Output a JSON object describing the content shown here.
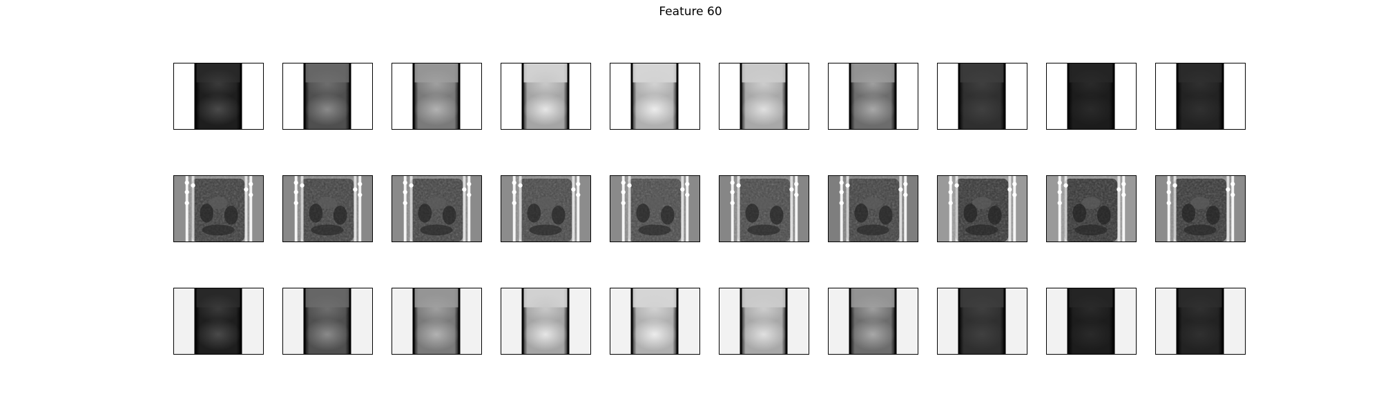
{
  "title": "Feature 60",
  "colors": {
    "background": "#ffffff",
    "frame": "#000000",
    "row_backgrounds": [
      "#ffffff",
      "#8a8a8a",
      "#f2f2f2"
    ]
  },
  "rows": [
    {
      "name": "row-1",
      "kind": "smooth",
      "tiles": [
        {
          "body": "#1e1e1e",
          "top": "#2a2a2a",
          "blob_top": "#3a3a3a",
          "blob_bottom": "#4a4a4a"
        },
        {
          "body": "#4f4f4f",
          "top": "#6a6a6a",
          "blob_top": "#6e6e6e",
          "blob_bottom": "#8a8a8a"
        },
        {
          "body": "#7a7a7a",
          "top": "#9a9a9a",
          "blob_top": "#a0a0a0",
          "blob_bottom": "#b2b2b2"
        },
        {
          "body": "#a5a5a5",
          "top": "#d8d8d8",
          "blob_top": "#c8c8c8",
          "blob_bottom": "#e6e6e6"
        },
        {
          "body": "#b0b0b0",
          "top": "#dcdcdc",
          "blob_top": "#d2d2d2",
          "blob_bottom": "#ececec"
        },
        {
          "body": "#a8a8a8",
          "top": "#cfcfcf",
          "blob_top": "#cdcdcd",
          "blob_bottom": "#e0e0e0"
        },
        {
          "body": "#6c6c6c",
          "top": "#9a9a9a",
          "blob_top": "#9f9f9f",
          "blob_bottom": "#a8a8a8"
        },
        {
          "body": "#2f2f2f",
          "top": "#3c3c3c",
          "blob_top": "#3f3f3f",
          "blob_bottom": "#404040"
        },
        {
          "body": "#1c1c1c",
          "top": "#262626",
          "blob_top": "#2a2a2a",
          "blob_bottom": "#2a2a2a"
        },
        {
          "body": "#222222",
          "top": "#2c2c2c",
          "blob_top": "#303030",
          "blob_bottom": "#303030"
        }
      ]
    },
    {
      "name": "row-2",
      "kind": "textured",
      "tiles": [
        {
          "bg": "#8e8e8e",
          "body": "#3a3a3a"
        },
        {
          "bg": "#888888",
          "body": "#3e3e3e"
        },
        {
          "bg": "#8a8a8a",
          "body": "#404040"
        },
        {
          "bg": "#8c8c8c",
          "body": "#454545"
        },
        {
          "bg": "#8a8a8a",
          "body": "#484848"
        },
        {
          "bg": "#868686",
          "body": "#464646"
        },
        {
          "bg": "#7e7e7e",
          "body": "#3e3e3e"
        },
        {
          "bg": "#9a9a9a",
          "body": "#333333"
        },
        {
          "bg": "#9a9a9a",
          "body": "#313131"
        },
        {
          "bg": "#8c8c8c",
          "body": "#343434"
        }
      ]
    },
    {
      "name": "row-3",
      "kind": "smooth",
      "tiles": [
        {
          "body": "#1e1e1e",
          "top": "#2a2a2a",
          "blob_top": "#3a3a3a",
          "blob_bottom": "#4a4a4a"
        },
        {
          "body": "#4f4f4f",
          "top": "#6a6a6a",
          "blob_top": "#6e6e6e",
          "blob_bottom": "#8a8a8a"
        },
        {
          "body": "#7a7a7a",
          "top": "#9a9a9a",
          "blob_top": "#a0a0a0",
          "blob_bottom": "#b2b2b2"
        },
        {
          "body": "#a5a5a5",
          "top": "#d8d8d8",
          "blob_top": "#c8c8c8",
          "blob_bottom": "#e6e6e6"
        },
        {
          "body": "#b0b0b0",
          "top": "#dcdcdc",
          "blob_top": "#d2d2d2",
          "blob_bottom": "#ececec"
        },
        {
          "body": "#a8a8a8",
          "top": "#cfcfcf",
          "blob_top": "#cdcdcd",
          "blob_bottom": "#e0e0e0"
        },
        {
          "body": "#6c6c6c",
          "top": "#9a9a9a",
          "blob_top": "#9f9f9f",
          "blob_bottom": "#a8a8a8"
        },
        {
          "body": "#2f2f2f",
          "top": "#3c3c3c",
          "blob_top": "#3f3f3f",
          "blob_bottom": "#404040"
        },
        {
          "body": "#1c1c1c",
          "top": "#262626",
          "blob_top": "#2a2a2a",
          "blob_bottom": "#2a2a2a"
        },
        {
          "body": "#222222",
          "top": "#2c2c2c",
          "blob_top": "#303030",
          "blob_bottom": "#303030"
        }
      ]
    }
  ]
}
